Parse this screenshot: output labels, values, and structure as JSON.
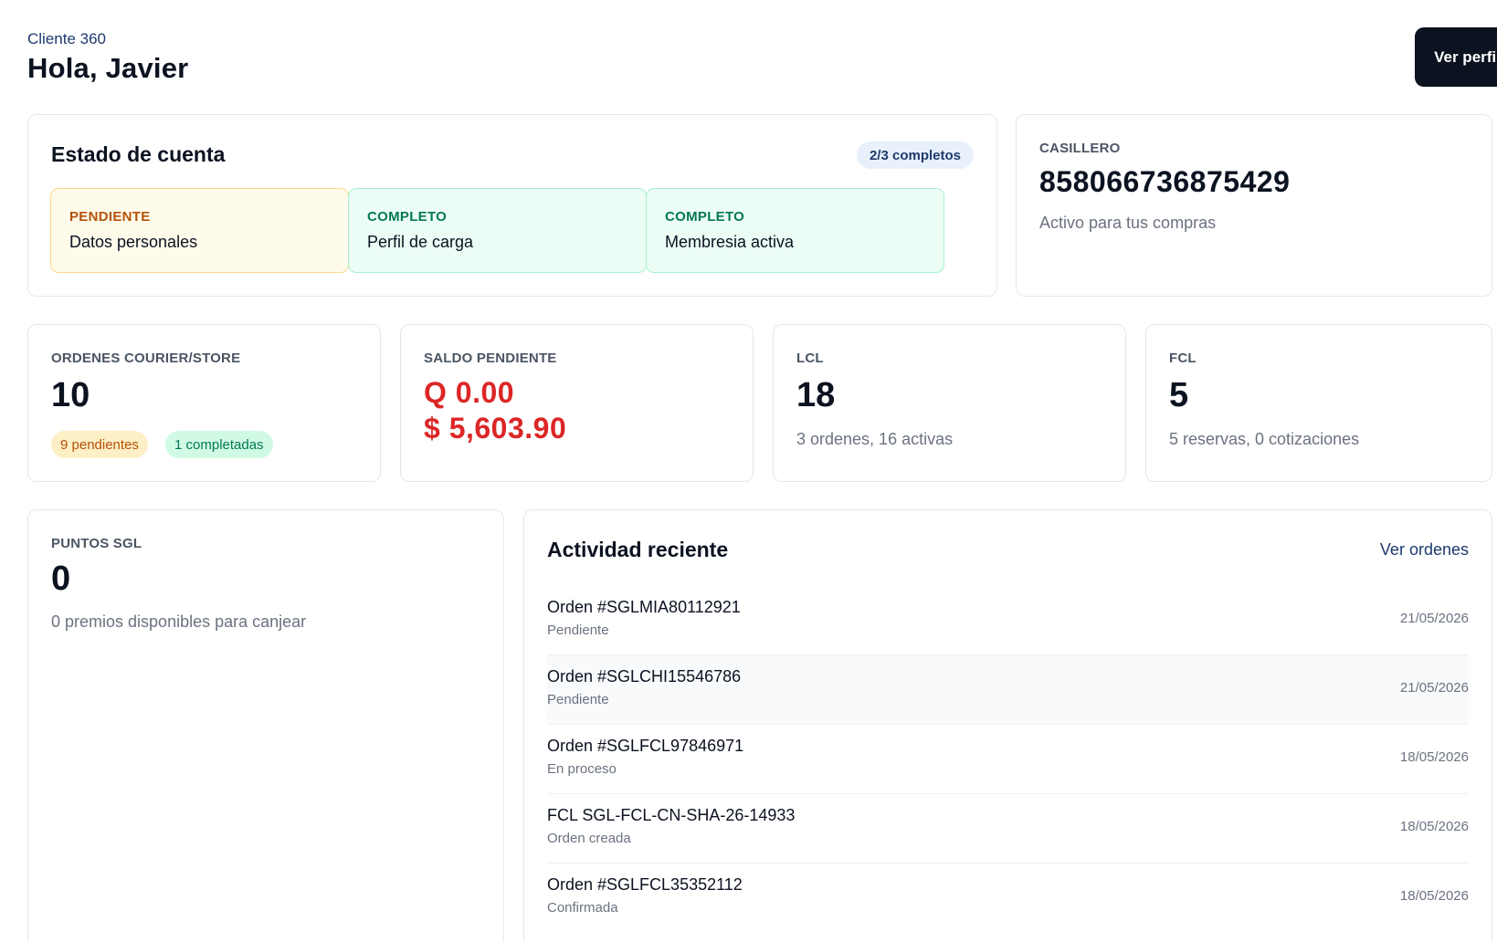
{
  "header": {
    "eyebrow": "Cliente 360",
    "greeting": "Hola, Javier",
    "profile_button": "Ver perfil"
  },
  "account": {
    "title": "Estado de cuenta",
    "progress": "2/3 completos",
    "items": [
      {
        "status": "PENDIENTE",
        "name": "Datos personales"
      },
      {
        "status": "COMPLETO",
        "name": "Perfil de carga"
      },
      {
        "status": "COMPLETO",
        "name": "Membresia activa"
      }
    ]
  },
  "locker": {
    "label": "CASILLERO",
    "number": "858066736875429",
    "note": "Activo para tus compras"
  },
  "stats": {
    "courier": {
      "label": "ORDENES COURIER/STORE",
      "value": "10",
      "pending": "9 pendientes",
      "completed": "1 completadas"
    },
    "balance": {
      "label": "SALDO PENDIENTE",
      "gtq": "Q 0.00",
      "usd": "$ 5,603.90"
    },
    "lcl": {
      "label": "LCL",
      "value": "18",
      "note": "3 ordenes, 16 activas"
    },
    "fcl": {
      "label": "FCL",
      "value": "5",
      "note": "5 reservas, 0 cotizaciones"
    }
  },
  "points": {
    "label": "PUNTOS SGL",
    "value": "0",
    "note": "0 premios disponibles para canjear"
  },
  "activity": {
    "title": "Actividad reciente",
    "link": "Ver ordenes",
    "rows": [
      {
        "title": "Orden #SGLMIA80112921",
        "status": "Pendiente",
        "date": "21/05/2026"
      },
      {
        "title": "Orden #SGLCHI15546786",
        "status": "Pendiente",
        "date": "21/05/2026"
      },
      {
        "title": "Orden #SGLFCL97846971",
        "status": "En proceso",
        "date": "18/05/2026"
      },
      {
        "title": "FCL SGL-FCL-CN-SHA-26-14933",
        "status": "Orden creada",
        "date": "18/05/2026"
      },
      {
        "title": "Orden #SGLFCL35352112",
        "status": "Confirmada",
        "date": "18/05/2026"
      }
    ]
  }
}
